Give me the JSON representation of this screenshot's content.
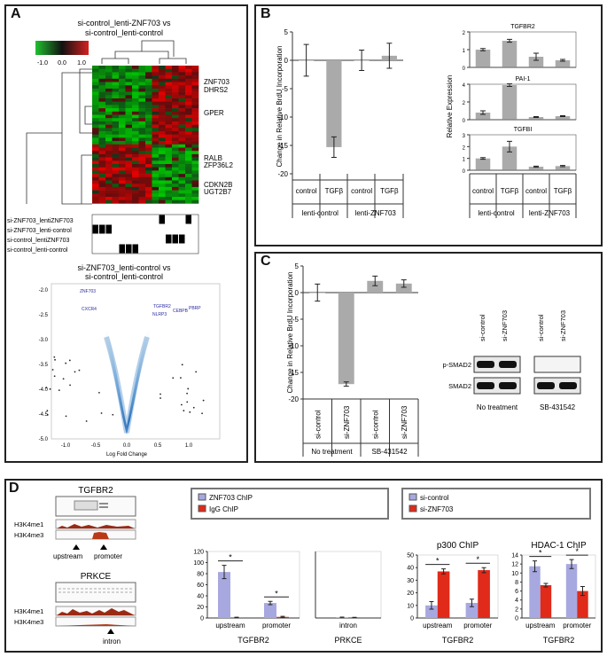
{
  "panels": {
    "a": "A",
    "b": "B",
    "c": "C",
    "d": "D"
  },
  "colors": {
    "red": "#d42020",
    "green": "#20c030",
    "grey_bar": "#aaaaaa",
    "blue_bar": "#a8a8e0",
    "red_bar": "#e02a1a",
    "volcano": "#2a78c0"
  },
  "heatmap": {
    "title_line1": "si-control_lenti-ZNF703  vs",
    "title_line2": "si-control_lenti-control",
    "scale_ticks": [
      "-1.0",
      "0.0",
      "1.0"
    ],
    "genes": [
      "ZNF703",
      "DHRS2",
      "GPER",
      "RALB",
      "ZFP36L2",
      "CDKN2B",
      "UGT2B7"
    ],
    "conditions": [
      "si-ZNF703_lentiZNF703",
      "si-ZNF703_lenti-control",
      "si-control_lentiZNF703",
      "si-control_lenti-control"
    ]
  },
  "volcano": {
    "title_line1": "si-ZNF703_lenti-control  vs",
    "title_line2": "si-control_lenti-control",
    "xlabel": "Log Fold Change",
    "yticks": [
      "-2.0",
      "-2.5",
      "-3.0",
      "-3.5",
      "-4.0",
      "-4.5",
      "-5.0"
    ],
    "xticks": [
      "-1.0",
      "-0.5",
      "0.0",
      "0.5",
      "1.0"
    ],
    "gene_labels": [
      "ZNF703",
      "CXCR4",
      "TGFBR2",
      "PBRP",
      "CEBPB",
      "NLRP3"
    ]
  },
  "chart_data": [
    {
      "id": "B-brdu",
      "type": "bar",
      "ylabel": "Change in Relative BrdU Incorporation",
      "ylim": [
        -20,
        5
      ],
      "yticks": [
        "5",
        "0",
        "-5",
        "-10",
        "-15",
        "-20"
      ],
      "categories": [
        "control",
        "TGFβ",
        "control",
        "TGFβ"
      ],
      "groups": [
        "lenti-control",
        "lenti-ZNF703"
      ],
      "values": [
        0,
        -15.3,
        0,
        0.8
      ],
      "errors": [
        2.8,
        1.8,
        1.8,
        2.2
      ]
    },
    {
      "id": "B-expr",
      "type": "bar",
      "ylabel": "Relative Expression",
      "categories": [
        "control",
        "TGFβ",
        "control",
        "TGFβ"
      ],
      "groups": [
        "lenti-control",
        "lenti-ZNF703"
      ],
      "subplots": [
        {
          "title": "TGFBR2",
          "ylim": [
            0,
            2
          ],
          "yticks": [
            "2",
            "1",
            "0"
          ],
          "values": [
            1.0,
            1.5,
            0.6,
            0.4
          ],
          "errors": [
            0.06,
            0.08,
            0.2,
            0.05
          ]
        },
        {
          "title": "PAI-1",
          "ylim": [
            0,
            4
          ],
          "yticks": [
            "4",
            "2",
            "0"
          ],
          "values": [
            0.8,
            3.9,
            0.3,
            0.4
          ],
          "errors": [
            0.2,
            0.15,
            0.05,
            0.05
          ]
        },
        {
          "title": "TGFBI",
          "ylim": [
            0,
            3
          ],
          "yticks": [
            "3",
            "2",
            "1",
            "0"
          ],
          "values": [
            1.0,
            2.0,
            0.3,
            0.35
          ],
          "errors": [
            0.07,
            0.45,
            0.05,
            0.05
          ]
        }
      ]
    },
    {
      "id": "C-brdu",
      "type": "bar",
      "ylabel": "Change in Relative BrdU Incorporation",
      "ylim": [
        -20,
        5
      ],
      "yticks": [
        "5",
        "0",
        "-5",
        "-10",
        "-15",
        "-20"
      ],
      "categories": [
        "si-control",
        "si-ZNF703",
        "si-control",
        "si-ZNF703"
      ],
      "groups": [
        "No treatment",
        "SB-431542"
      ],
      "values": [
        0,
        -17.2,
        2.2,
        1.7
      ],
      "errors": [
        1.6,
        0.4,
        0.9,
        0.7
      ]
    },
    {
      "id": "D-tgfbr2-chip",
      "type": "bar",
      "ylim": [
        0,
        120
      ],
      "yticks": [
        "120",
        "100",
        "80",
        "60",
        "40",
        "20",
        "0"
      ],
      "categories": [
        "upstream",
        "promoter"
      ],
      "xlabel": "TGFBR2",
      "series": [
        {
          "name": "ZNF703 ChIP",
          "values": [
            83,
            27
          ],
          "errors": [
            12,
            3
          ]
        },
        {
          "name": "IgG ChIP",
          "values": [
            1,
            2
          ],
          "errors": [
            0.5,
            1
          ]
        }
      ],
      "significance": [
        "*",
        "*"
      ]
    },
    {
      "id": "D-prkce-chip",
      "type": "bar",
      "ylim": [
        0,
        120
      ],
      "categories": [
        "intron"
      ],
      "xlabel": "PRKCE",
      "series": [
        {
          "name": "ZNF703 ChIP",
          "values": [
            1.4
          ],
          "errors": [
            0.3
          ]
        },
        {
          "name": "IgG ChIP",
          "values": [
            1.1
          ],
          "errors": [
            0.2
          ]
        }
      ]
    },
    {
      "id": "D-p300",
      "type": "bar",
      "title": "p300 ChIP",
      "ylim": [
        0,
        50
      ],
      "yticks": [
        "50",
        "40",
        "30",
        "20",
        "10",
        "0"
      ],
      "categories": [
        "upstream",
        "promoter"
      ],
      "xlabel": "TGFBR2",
      "series": [
        {
          "name": "si-control",
          "values": [
            10,
            12
          ],
          "errors": [
            3,
            3
          ]
        },
        {
          "name": "si-ZNF703",
          "values": [
            37,
            38
          ],
          "errors": [
            2,
            2
          ]
        }
      ],
      "significance": [
        "*",
        "*"
      ]
    },
    {
      "id": "D-hdac1",
      "type": "bar",
      "title": "HDAC-1 ChIP",
      "ylim": [
        0,
        14
      ],
      "yticks": [
        "14",
        "12",
        "10",
        "8",
        "6",
        "4",
        "2",
        "0"
      ],
      "categories": [
        "upstream",
        "promoter"
      ],
      "xlabel": "TGFBR2",
      "series": [
        {
          "name": "si-control",
          "values": [
            11.5,
            12
          ],
          "errors": [
            1.2,
            1
          ]
        },
        {
          "name": "si-ZNF703",
          "values": [
            7.3,
            6
          ],
          "errors": [
            0.4,
            1
          ]
        }
      ],
      "significance": [
        "*",
        "*"
      ]
    }
  ],
  "western": {
    "lanes": [
      "si-control",
      "si-ZNF703",
      "si-control",
      "si-ZNF703"
    ],
    "rows": [
      "p-SMAD2",
      "SMAD2"
    ],
    "groups": [
      "No treatment",
      "SB-431542"
    ]
  },
  "tracks": {
    "genes": [
      "TGFBR2",
      "PRKCE"
    ],
    "marks": [
      "H3K4me1",
      "H3K4me3"
    ],
    "arrows": [
      "upstream",
      "promoter",
      "intron"
    ]
  },
  "legends": {
    "chip": [
      "ZNF703 ChIP",
      "IgG ChIP"
    ],
    "si": [
      "si-control",
      "si-ZNF703"
    ]
  }
}
